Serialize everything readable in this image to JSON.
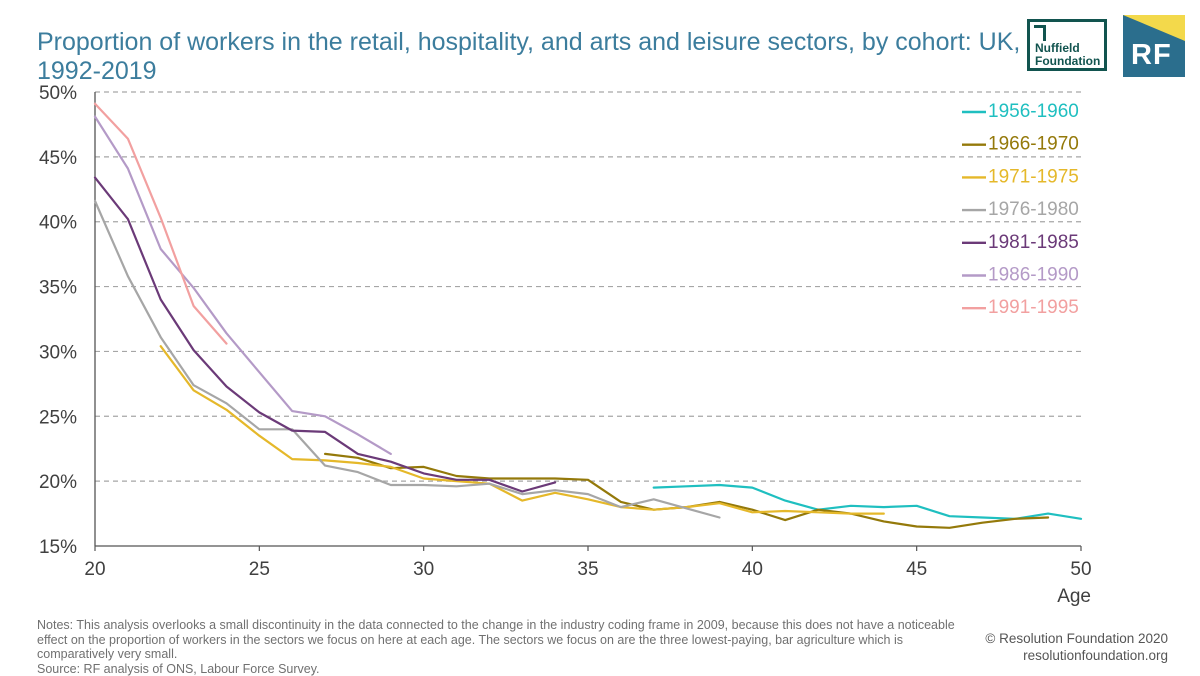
{
  "header": {
    "title": "Proportion of workers in the retail, hospitality, and arts and leisure sectors, by cohort: UK, 1992-2019"
  },
  "logos": {
    "nuffield": "Nuffield Foundation",
    "rf": "RF"
  },
  "footer": {
    "notes": "Notes: This analysis overlooks a small discontinuity in the data connected to the change in the industry coding frame in 2009, because this does not have a noticeable effect on the proportion of workers in the sectors we focus on here at each age. The sectors we focus on are the three lowest-paying, bar agriculture which is comparatively very small.",
    "source": "Source: RF analysis of ONS, Labour Force Survey.",
    "copyright": "© Resolution Foundation 2020",
    "website": "resolutionfoundation.org"
  },
  "colors": {
    "title": "#3c7d9d",
    "axis": "#404040",
    "grid": "#a6a6a6"
  },
  "chart_data": {
    "type": "line",
    "xlabel": "Age",
    "ylabel": "",
    "xlim": [
      20,
      50
    ],
    "ylim": [
      15,
      50
    ],
    "x_ticks": [
      20,
      25,
      30,
      35,
      40,
      45,
      50
    ],
    "y_ticks": [
      15,
      20,
      25,
      30,
      35,
      40,
      45,
      50
    ],
    "y_tick_labels": [
      "15%",
      "20%",
      "25%",
      "30%",
      "35%",
      "40%",
      "45%",
      "50%"
    ],
    "grid": "horizontal dashed",
    "legend_position": "top-right",
    "series": [
      {
        "name": "1956-1960",
        "color": "#1fbfc0",
        "x": [
          37,
          38,
          39,
          40,
          41,
          42,
          43,
          44,
          45,
          46,
          47,
          48,
          49,
          50
        ],
        "y": [
          19.5,
          19.6,
          19.7,
          19.5,
          18.5,
          17.8,
          18.1,
          18.0,
          18.1,
          17.3,
          17.2,
          17.1,
          17.5,
          17.1
        ]
      },
      {
        "name": "1966-1970",
        "color": "#94790a",
        "x": [
          27,
          28,
          29,
          30,
          31,
          32,
          33,
          34,
          35,
          36,
          37,
          38,
          39,
          40,
          41,
          42,
          43,
          44,
          45,
          46,
          47,
          48,
          49
        ],
        "y": [
          22.1,
          21.8,
          21.0,
          21.1,
          20.4,
          20.2,
          20.2,
          20.2,
          20.1,
          18.4,
          17.8,
          18.0,
          18.4,
          17.8,
          17.0,
          17.8,
          17.5,
          16.9,
          16.5,
          16.4,
          16.8,
          17.1,
          17.2
        ]
      },
      {
        "name": "1971-1975",
        "color": "#e5b82a",
        "x": [
          22,
          23,
          24,
          25,
          26,
          27,
          28,
          29,
          30,
          31,
          32,
          33,
          34,
          35,
          36,
          37,
          38,
          39,
          40,
          41,
          42,
          43,
          44
        ],
        "y": [
          30.4,
          27.0,
          25.5,
          23.5,
          21.7,
          21.6,
          21.4,
          21.1,
          20.2,
          20.0,
          19.8,
          18.5,
          19.1,
          18.6,
          18.0,
          17.8,
          18.0,
          18.3,
          17.6,
          17.7,
          17.6,
          17.5,
          17.5
        ]
      },
      {
        "name": "1976-1980",
        "color": "#a6a6a6",
        "x": [
          20,
          21,
          22,
          23,
          24,
          25,
          26,
          27,
          28,
          29,
          30,
          31,
          32,
          33,
          34,
          35,
          36,
          37,
          38,
          39
        ],
        "y": [
          41.6,
          35.8,
          31.1,
          27.4,
          26.0,
          24.0,
          24.0,
          21.2,
          20.7,
          19.7,
          19.7,
          19.6,
          19.8,
          19.0,
          19.3,
          19.0,
          18.0,
          18.6,
          17.9,
          17.2
        ]
      },
      {
        "name": "1981-1985",
        "color": "#6b3a78",
        "x": [
          20,
          21,
          22,
          23,
          24,
          25,
          26,
          27,
          28,
          29,
          30,
          31,
          32,
          33,
          34
        ],
        "y": [
          43.4,
          40.2,
          34.0,
          30.1,
          27.3,
          25.3,
          23.9,
          23.8,
          22.1,
          21.5,
          20.6,
          20.1,
          20.1,
          19.2,
          19.9
        ]
      },
      {
        "name": "1986-1990",
        "color": "#b49ac7",
        "x": [
          20,
          21,
          22,
          23,
          24,
          25,
          26,
          27,
          28,
          29
        ],
        "y": [
          48.1,
          44.1,
          37.9,
          34.9,
          31.4,
          28.4,
          25.4,
          25.0,
          23.6,
          22.1
        ]
      },
      {
        "name": "1991-1995",
        "color": "#f2a0a0",
        "x": [
          20,
          21,
          22,
          23,
          24
        ],
        "y": [
          49.1,
          46.4,
          40.3,
          33.5,
          30.6
        ]
      }
    ]
  }
}
